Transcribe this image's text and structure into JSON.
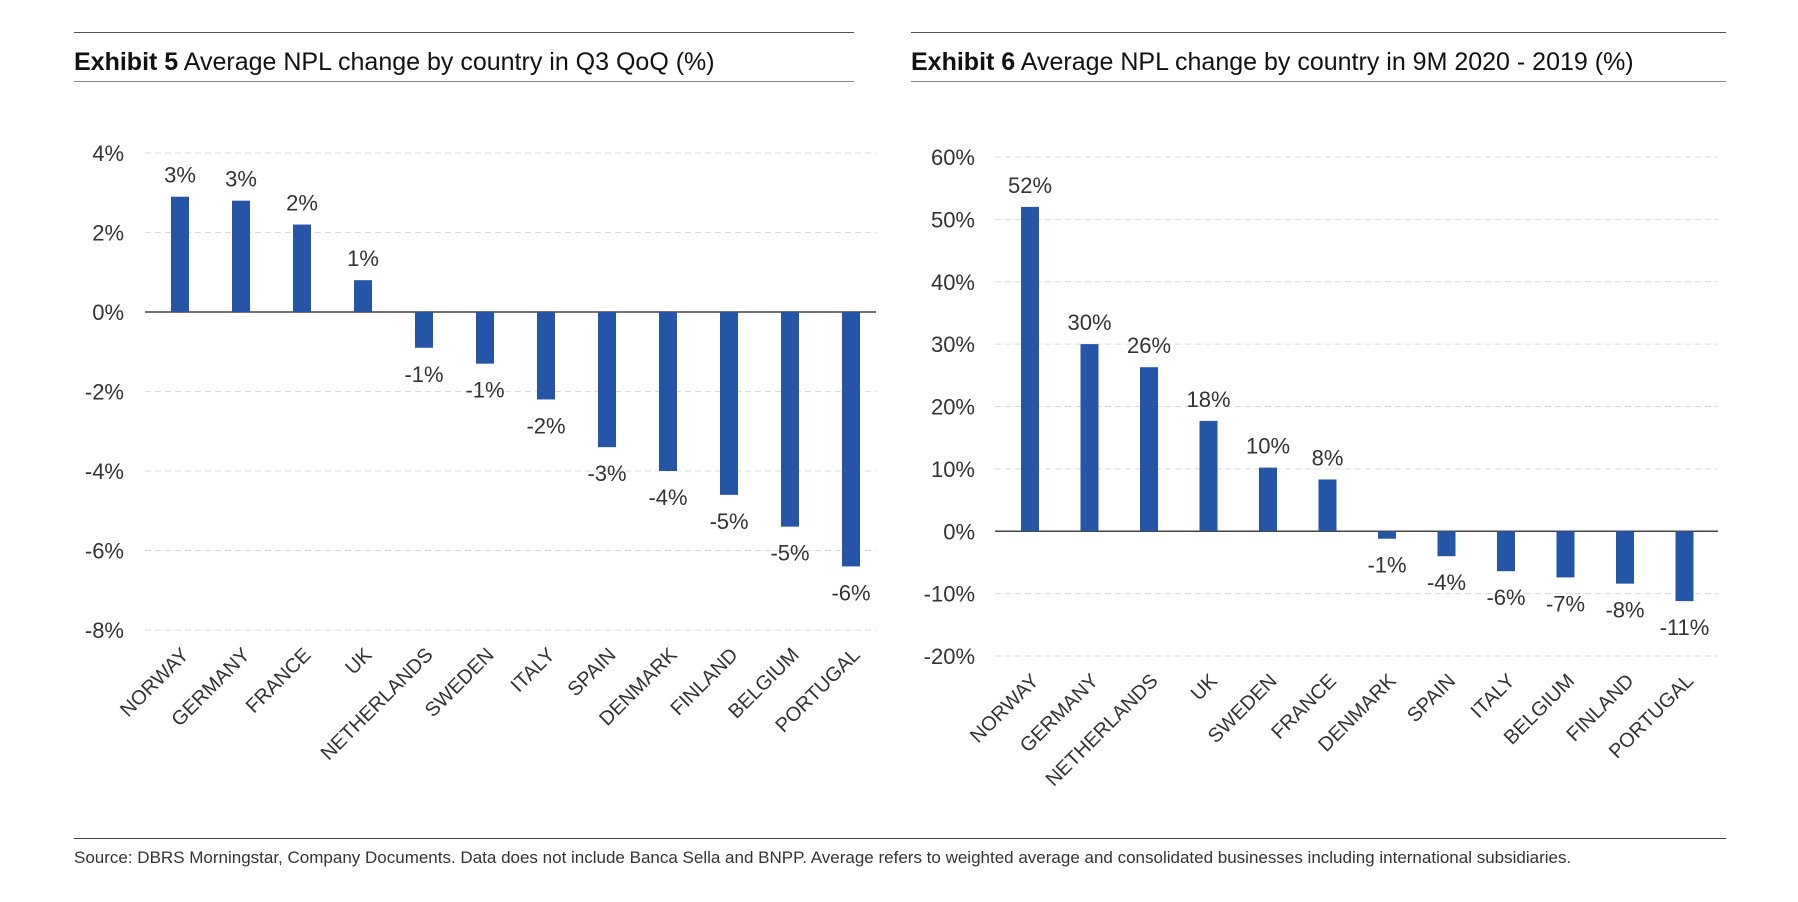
{
  "exhibits": [
    {
      "label": "Exhibit 5",
      "title": "Average NPL change by country in Q3 QoQ (%)"
    },
    {
      "label": "Exhibit 6",
      "title": "Average NPL change by country in 9M 2020 - 2019 (%)"
    }
  ],
  "source": "Source: DBRS Morningstar, Company Documents. Data does not include Banca Sella and BNPP. Average refers to weighted average and consolidated businesses including international subsidiaries.",
  "colors": {
    "bar": "#2555a6",
    "grid": "#d9d9d9",
    "axis": "#444444"
  },
  "chart_data": [
    {
      "type": "bar",
      "title": "Average NPL change by country in Q3 QoQ (%)",
      "categories": [
        "NORWAY",
        "GERMANY",
        "FRANCE",
        "UK",
        "NETHERLANDS",
        "SWEDEN",
        "ITALY",
        "SPAIN",
        "DENMARK",
        "FINLAND",
        "BELGIUM",
        "PORTUGAL"
      ],
      "values": [
        2.9,
        2.8,
        2.2,
        0.8,
        -0.9,
        -1.3,
        -2.2,
        -3.4,
        -4.0,
        -4.6,
        -5.4,
        -6.4
      ],
      "data_labels": [
        "3%",
        "3%",
        "2%",
        "1%",
        "-1%",
        "-1%",
        "-2%",
        "-3%",
        "-4%",
        "-5%",
        "-5%",
        "-6%"
      ],
      "yticks": [
        4,
        2,
        0,
        -2,
        -4,
        -6,
        -8
      ],
      "ytick_labels": [
        "4%",
        "2%",
        "0%",
        "-2%",
        "-4%",
        "-6%",
        "-8%"
      ],
      "ylim": [
        -8,
        4
      ],
      "grid": true,
      "legend": "none"
    },
    {
      "type": "bar",
      "title": "Average NPL change by country in 9M 2020 - 2019 (%)",
      "categories": [
        "NORWAY",
        "GERMANY",
        "NETHERLANDS",
        "UK",
        "SWEDEN",
        "FRANCE",
        "DENMARK",
        "SPAIN",
        "ITALY",
        "BELGIUM",
        "FINLAND",
        "PORTUGAL"
      ],
      "values": [
        52,
        30,
        26.3,
        17.7,
        10.2,
        8.3,
        -1.2,
        -4,
        -6.4,
        -7.4,
        -8.4,
        -11.2
      ],
      "data_labels": [
        "52%",
        "30%",
        "26%",
        "18%",
        "10%",
        "8%",
        "-1%",
        "-4%",
        "-6%",
        "-7%",
        "-8%",
        "-11%"
      ],
      "yticks": [
        60,
        50,
        40,
        30,
        20,
        10,
        0,
        -10,
        -20
      ],
      "ytick_labels": [
        "60%",
        "50%",
        "40%",
        "30%",
        "20%",
        "10%",
        "0%",
        "-10%",
        "-20%"
      ],
      "ylim": [
        -20,
        60
      ],
      "grid": true,
      "legend": "none"
    }
  ]
}
